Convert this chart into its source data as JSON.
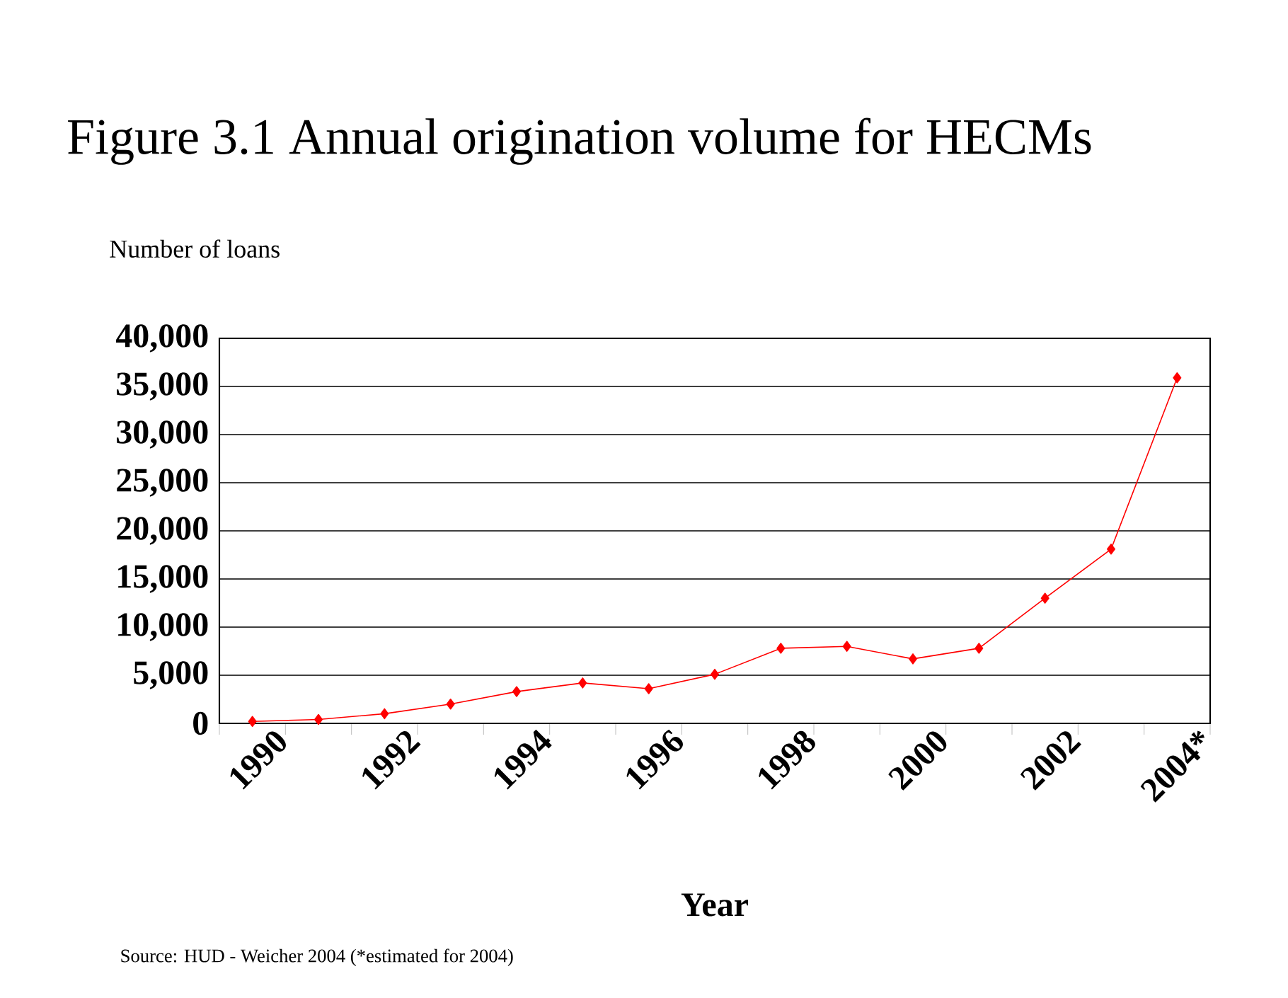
{
  "chart_data": {
    "type": "line",
    "title": "Figure 3.1 Annual origination volume for HECMs",
    "ylabel": "Number of loans",
    "xlabel": "Year",
    "annotations": [
      "Source: HUD - Weicher 2004 (*estimated for 2004)"
    ],
    "categories": [
      "1990",
      null,
      "1992",
      null,
      "1994",
      null,
      "1996",
      null,
      "1998",
      null,
      "2000",
      null,
      "2002",
      null,
      "2004*"
    ],
    "series": [
      {
        "color": "#ff0000",
        "values": [
          200,
          400,
          1000,
          2000,
          3300,
          4200,
          3600,
          5100,
          7800,
          8000,
          6700,
          7800,
          13000,
          18100,
          35900
        ]
      }
    ],
    "ylim": [
      0,
      40000
    ],
    "yticks": [
      0,
      {
        "value": 5000,
        "label": "5,000"
      },
      {
        "value": 10000,
        "label": "10,000"
      },
      {
        "value": 15000,
        "label": "15,000"
      },
      {
        "value": 20000,
        "label": "20,000"
      },
      {
        "value": 25000,
        "label": "25,000"
      },
      {
        "value": 30000,
        "label": "30,000"
      },
      {
        "value": 35000,
        "label": "35,000"
      },
      {
        "value": 40000,
        "label": "40,000"
      }
    ],
    "grid": "y",
    "marker": "diamond",
    "line_style": "solid"
  }
}
